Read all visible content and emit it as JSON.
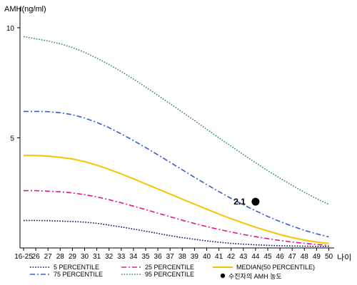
{
  "chart_data": {
    "type": "line",
    "ylabel": "AMH(ng/ml)",
    "xlabel": "나이",
    "ylim": [
      0,
      11
    ],
    "yticks": [
      5,
      10
    ],
    "categories": [
      "16-25",
      "26",
      "27",
      "28",
      "29",
      "30",
      "31",
      "32",
      "33",
      "34",
      "35",
      "36",
      "37",
      "38",
      "39",
      "40",
      "41",
      "42",
      "43",
      "44",
      "45",
      "46",
      "47",
      "48",
      "49",
      "50"
    ],
    "series": [
      {
        "name": "5 PERCENTILE",
        "color": "#10106a",
        "dash": "dotted",
        "values": [
          1.25,
          1.25,
          1.24,
          1.22,
          1.2,
          1.17,
          1.12,
          1.04,
          0.95,
          0.86,
          0.76,
          0.66,
          0.56,
          0.47,
          0.39,
          0.32,
          0.26,
          0.21,
          0.17,
          0.14,
          0.12,
          0.1,
          0.09,
          0.08,
          0.07,
          0.07
        ]
      },
      {
        "name": "25 PERCENTILE",
        "color": "#e0198a",
        "dash": "dashdot",
        "values": [
          2.6,
          2.6,
          2.58,
          2.55,
          2.5,
          2.42,
          2.32,
          2.19,
          2.05,
          1.9,
          1.74,
          1.58,
          1.42,
          1.26,
          1.11,
          0.97,
          0.84,
          0.72,
          0.61,
          0.51,
          0.42,
          0.34,
          0.27,
          0.21,
          0.16,
          0.12
        ]
      },
      {
        "name": "MEDIAN(50 PERCENTILE)",
        "color": "#f5c400",
        "dash": "solid",
        "values": [
          4.2,
          4.2,
          4.17,
          4.12,
          4.04,
          3.92,
          3.76,
          3.57,
          3.36,
          3.14,
          2.91,
          2.68,
          2.45,
          2.22,
          1.99,
          1.76,
          1.54,
          1.33,
          1.13,
          0.94,
          0.77,
          0.61,
          0.47,
          0.36,
          0.27,
          0.2
        ]
      },
      {
        "name": "75 PERCENTILE",
        "color": "#3a5bd0",
        "dash": "dashdot",
        "values": [
          6.2,
          6.2,
          6.19,
          6.14,
          6.05,
          5.9,
          5.7,
          5.46,
          5.18,
          4.88,
          4.56,
          4.23,
          3.89,
          3.55,
          3.21,
          2.88,
          2.56,
          2.25,
          1.96,
          1.69,
          1.43,
          1.2,
          0.99,
          0.8,
          0.64,
          0.5
        ]
      },
      {
        "name": "95 PERCENTILE",
        "color": "#3b8a5a",
        "dash": "dotted",
        "values": [
          9.6,
          9.5,
          9.4,
          9.27,
          9.1,
          8.88,
          8.62,
          8.33,
          8.01,
          7.67,
          7.31,
          6.93,
          6.55,
          6.17,
          5.78,
          5.39,
          5.0,
          4.62,
          4.24,
          3.87,
          3.51,
          3.17,
          2.84,
          2.53,
          2.24,
          1.98
        ]
      }
    ],
    "point": {
      "name": "수진자의 AMH 농도",
      "x": "44",
      "y": 2.1,
      "label": "2.1",
      "color": "#000000"
    },
    "legend_position": "bottom",
    "grid": false
  }
}
